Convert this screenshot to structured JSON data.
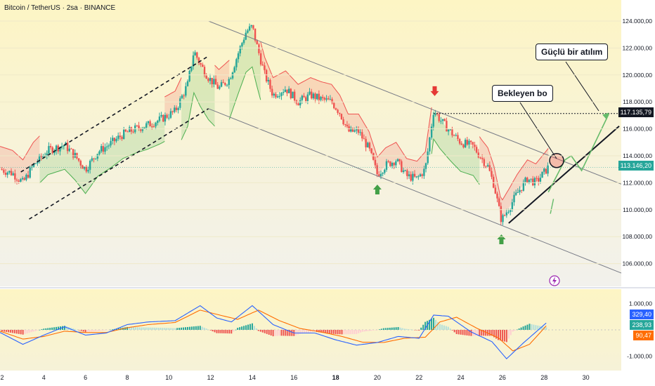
{
  "header": {
    "title": "Bitcoin / TetherUS · 2sa · BINANCE"
  },
  "annotations": {
    "callout_top": "Güçlü bir atılım",
    "callout_mid": "Bekleyen bo"
  },
  "price_labels": {
    "target": "117.135,79",
    "current": "113.146,20"
  },
  "indicator_labels": {
    "macd": "329,40",
    "signal": "238,93",
    "hist": "90,47"
  },
  "colors": {
    "bull": "#26a69a",
    "bear": "#ef5350",
    "macd_line": "#2962ff",
    "signal_line": "#ff6d00",
    "bg_top": "#fdf5c4",
    "bg_bottom": "#f1f1f1",
    "green_arrow": "#43a047",
    "red_arrow": "#e53935"
  },
  "chart_data": {
    "type": "candlestick",
    "y_axis": {
      "ticks": [
        "124.000,00",
        "122.000,00",
        "120.000,00",
        "118.000,00",
        "116.000,00",
        "114.000,00",
        "112.000,00",
        "110.000,00",
        "108.000,00",
        "106.000,00"
      ],
      "tick_values": [
        124000,
        122000,
        120000,
        118000,
        116000,
        114000,
        112000,
        110000,
        108000,
        106000
      ],
      "range": [
        105000,
        125000
      ]
    },
    "x_axis": {
      "ticks": [
        "2",
        "4",
        "6",
        "8",
        "10",
        "12",
        "14",
        "16",
        "18",
        "20",
        "22",
        "24",
        "26",
        "28",
        "30"
      ],
      "range_days": [
        1.9,
        31.7
      ]
    },
    "price_path": [
      [
        1.9,
        113000
      ],
      [
        2.5,
        112700
      ],
      [
        3.0,
        112000
      ],
      [
        3.5,
        113300
      ],
      [
        4.2,
        114400
      ],
      [
        5.0,
        114800
      ],
      [
        5.5,
        114000
      ],
      [
        6.0,
        113000
      ],
      [
        6.6,
        114300
      ],
      [
        7.2,
        114900
      ],
      [
        7.8,
        115600
      ],
      [
        8.4,
        116000
      ],
      [
        9.0,
        116300
      ],
      [
        9.6,
        116700
      ],
      [
        10.3,
        117300
      ],
      [
        10.9,
        119300
      ],
      [
        11.2,
        121800
      ],
      [
        11.5,
        120800
      ],
      [
        11.9,
        119800
      ],
      [
        12.4,
        119000
      ],
      [
        12.9,
        119700
      ],
      [
        13.3,
        121500
      ],
      [
        13.7,
        123200
      ],
      [
        14.0,
        123600
      ],
      [
        14.2,
        122300
      ],
      [
        14.6,
        120000
      ],
      [
        15.0,
        118500
      ],
      [
        15.6,
        119000
      ],
      [
        16.2,
        118000
      ],
      [
        16.8,
        118500
      ],
      [
        17.3,
        118200
      ],
      [
        17.8,
        118000
      ],
      [
        18.2,
        117200
      ],
      [
        18.6,
        115800
      ],
      [
        19.1,
        115800
      ],
      [
        19.6,
        114500
      ],
      [
        20.0,
        112600
      ],
      [
        20.4,
        113300
      ],
      [
        20.9,
        113700
      ],
      [
        21.4,
        112500
      ],
      [
        21.9,
        112300
      ],
      [
        22.3,
        113000
      ],
      [
        22.7,
        117400
      ],
      [
        23.0,
        116700
      ],
      [
        23.5,
        115800
      ],
      [
        24.0,
        115000
      ],
      [
        24.6,
        114700
      ],
      [
        25.0,
        113800
      ],
      [
        25.3,
        113200
      ],
      [
        25.6,
        111800
      ],
      [
        25.95,
        109200
      ],
      [
        26.3,
        110100
      ],
      [
        26.7,
        111200
      ],
      [
        27.2,
        112300
      ],
      [
        27.6,
        112000
      ],
      [
        28.2,
        113146
      ]
    ],
    "macd": [
      [
        1.9,
        -100
      ],
      [
        3.0,
        -550
      ],
      [
        4.0,
        -200
      ],
      [
        5.0,
        120
      ],
      [
        6.0,
        -200
      ],
      [
        7.0,
        -120
      ],
      [
        8.0,
        200
      ],
      [
        9.0,
        300
      ],
      [
        10.3,
        350
      ],
      [
        11.5,
        920
      ],
      [
        12.3,
        450
      ],
      [
        13.0,
        300
      ],
      [
        14.0,
        920
      ],
      [
        15.0,
        200
      ],
      [
        16.0,
        -120
      ],
      [
        17.0,
        -120
      ],
      [
        18.0,
        -380
      ],
      [
        19.0,
        -580
      ],
      [
        20.0,
        -480
      ],
      [
        21.0,
        -250
      ],
      [
        22.0,
        -320
      ],
      [
        22.7,
        560
      ],
      [
        23.4,
        520
      ],
      [
        24.5,
        -80
      ],
      [
        25.5,
        -450
      ],
      [
        26.2,
        -1100
      ],
      [
        27.0,
        -500
      ],
      [
        28.2,
        329
      ]
    ],
    "signal": [
      [
        1.9,
        -50
      ],
      [
        3.0,
        -350
      ],
      [
        4.0,
        -250
      ],
      [
        5.0,
        -50
      ],
      [
        6.0,
        -100
      ],
      [
        7.0,
        -100
      ],
      [
        8.0,
        80
      ],
      [
        9.0,
        200
      ],
      [
        10.3,
        280
      ],
      [
        11.5,
        750
      ],
      [
        12.5,
        550
      ],
      [
        13.3,
        400
      ],
      [
        14.3,
        750
      ],
      [
        15.3,
        350
      ],
      [
        16.3,
        50
      ],
      [
        17.3,
        -80
      ],
      [
        18.3,
        -250
      ],
      [
        19.3,
        -470
      ],
      [
        20.3,
        -480
      ],
      [
        21.3,
        -320
      ],
      [
        22.3,
        -280
      ],
      [
        23.0,
        300
      ],
      [
        23.8,
        480
      ],
      [
        24.8,
        50
      ],
      [
        25.8,
        -300
      ],
      [
        26.5,
        -800
      ],
      [
        27.3,
        -550
      ],
      [
        28.2,
        239
      ]
    ],
    "macd_axis": {
      "ticks": [
        "1.000,00",
        "-1.000,00"
      ],
      "tick_values": [
        1000,
        -1000
      ],
      "range": [
        -1400,
        1400
      ]
    },
    "last_values": {
      "macd": 329.4,
      "signal": 238.93,
      "hist": 90.47
    }
  }
}
